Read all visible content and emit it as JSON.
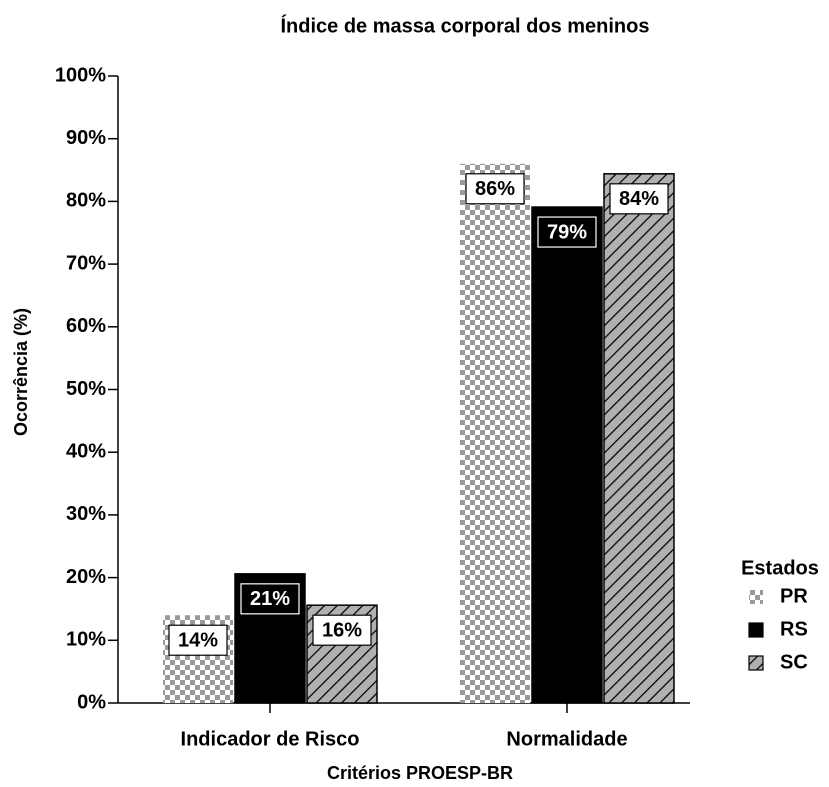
{
  "chart_data": {
    "type": "bar",
    "title": "Índice de massa corporal dos meninos",
    "x_label": "Critérios PROESP-BR",
    "y_label": "Ocorrência (%)",
    "categories": [
      "Indicador de Risco",
      "Normalidade"
    ],
    "legend_title": "Estados",
    "legend_position": "right",
    "series": [
      {
        "name": "PR",
        "color": "#9a9a9a",
        "values": [
          14,
          86
        ],
        "value_labels": [
          "14%",
          "86%"
        ]
      },
      {
        "name": "RS",
        "color": "#000000",
        "values": [
          20.6,
          79.1
        ],
        "value_labels": [
          "21%",
          "79%"
        ]
      },
      {
        "name": "SC",
        "color": "#b0b0b0",
        "values": [
          15.6,
          84.4
        ],
        "value_labels": [
          "16%",
          "84%"
        ]
      }
    ],
    "ylim": [
      0,
      100
    ],
    "yticks": [
      {
        "value": 0,
        "label": "0%"
      },
      {
        "value": 10,
        "label": "10%"
      },
      {
        "value": 20,
        "label": "20%"
      },
      {
        "value": 30,
        "label": "30%"
      },
      {
        "value": 40,
        "label": "40%"
      },
      {
        "value": 50,
        "label": "50%"
      },
      {
        "value": 60,
        "label": "60%"
      },
      {
        "value": 70,
        "label": "70%"
      },
      {
        "value": 80,
        "label": "80%"
      },
      {
        "value": 90,
        "label": "90%"
      },
      {
        "value": 100,
        "label": "100%"
      }
    ]
  }
}
